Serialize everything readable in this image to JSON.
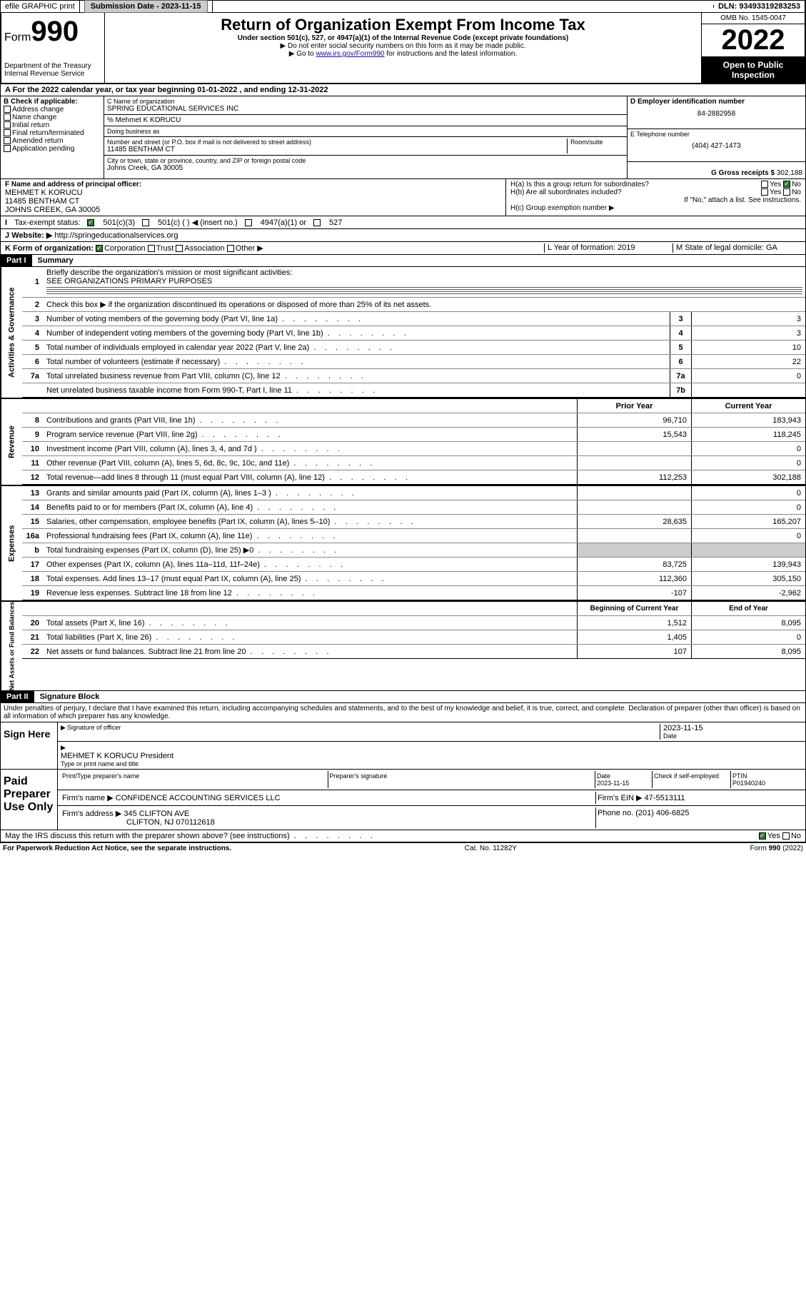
{
  "topbar": {
    "efile": "efile GRAPHIC print",
    "sub_label": "Submission Date - 2023-11-15",
    "dln": "DLN: 93493319283253"
  },
  "header": {
    "form_word": "Form",
    "form_num": "990",
    "dept": "Department of the Treasury",
    "irs": "Internal Revenue Service",
    "title": "Return of Organization Exempt From Income Tax",
    "sub1": "Under section 501(c), 527, or 4947(a)(1) of the Internal Revenue Code (except private foundations)",
    "sub2": "▶ Do not enter social security numbers on this form as it may be made public.",
    "sub3_pre": "▶ Go to ",
    "sub3_link": "www.irs.gov/Form990",
    "sub3_post": " for instructions and the latest information.",
    "omb": "OMB No. 1545-0047",
    "year": "2022",
    "open": "Open to Public Inspection"
  },
  "rowA": "A For the 2022 calendar year, or tax year beginning 01-01-2022    , and ending 12-31-2022",
  "boxB": {
    "title": "B Check if applicable:",
    "opts": [
      "Address change",
      "Name change",
      "Initial return",
      "Final return/terminated",
      "Amended return",
      "Application pending"
    ]
  },
  "boxC": {
    "label": "C Name of organization",
    "name": "SPRING EDUCATIONAL SERVICES INC",
    "care": "% Mehmet K KORUCU",
    "dba_label": "Doing business as",
    "addr_label": "Number and street (or P.O. box if mail is not delivered to street address)",
    "room_label": "Room/suite",
    "addr": "11485 BENTHAM CT",
    "city_label": "City or town, state or province, country, and ZIP or foreign postal code",
    "city": "Johns Creek, GA  30005"
  },
  "boxD": {
    "label": "D Employer identification number",
    "val": "84-2882958"
  },
  "boxE": {
    "label": "E Telephone number",
    "val": "(404) 427-1473"
  },
  "boxG": {
    "label": "G Gross receipts $ ",
    "val": "302,188"
  },
  "boxF": {
    "label": "F Name and address of principal officer:",
    "l1": "MEHMET K KORUCU",
    "l2": "11485 BENTHAM CT",
    "l3": "JOHNS CREEK, GA  30005"
  },
  "boxH": {
    "ha": "H(a)  Is this a group return for subordinates?",
    "hb": "H(b)  Are all subordinates included?",
    "hb2": "If \"No,\" attach a list. See instructions.",
    "hc": "H(c)  Group exemption number ▶",
    "yes": "Yes",
    "no": "No"
  },
  "rowI": {
    "label": "Tax-exempt status:",
    "o1": "501(c)(3)",
    "o2": "501(c) (  ) ◀ (insert no.)",
    "o3": "4947(a)(1) or",
    "o4": "527"
  },
  "rowJ": {
    "label": "Website: ▶",
    "val": "http://springeducationalservices.org"
  },
  "rowK": {
    "label": "K Form of organization:",
    "o1": "Corporation",
    "o2": "Trust",
    "o3": "Association",
    "o4": "Other ▶"
  },
  "rowL": {
    "label": "L Year of formation: 2019"
  },
  "rowM": {
    "label": "M State of legal domicile: GA"
  },
  "part1": {
    "hdr": "Part I",
    "title": "Summary"
  },
  "gov": {
    "label": "Activities & Governance",
    "l1": "Briefly describe the organization's mission or most significant activities:",
    "l1v": "SEE ORGANIZATIONS PRIMARY PURPOSES",
    "l2": "Check this box ▶    if the organization discontinued its operations or disposed of more than 25% of its net assets.",
    "rows": [
      {
        "n": "3",
        "t": "Number of voting members of the governing body (Part VI, line 1a)",
        "b": "3",
        "v": "3"
      },
      {
        "n": "4",
        "t": "Number of independent voting members of the governing body (Part VI, line 1b)",
        "b": "4",
        "v": "3"
      },
      {
        "n": "5",
        "t": "Total number of individuals employed in calendar year 2022 (Part V, line 2a)",
        "b": "5",
        "v": "10"
      },
      {
        "n": "6",
        "t": "Total number of volunteers (estimate if necessary)",
        "b": "6",
        "v": "22"
      },
      {
        "n": "7a",
        "t": "Total unrelated business revenue from Part VIII, column (C), line 12",
        "b": "7a",
        "v": "0"
      },
      {
        "n": "",
        "t": "Net unrelated business taxable income from Form 990-T, Part I, line 11",
        "b": "7b",
        "v": ""
      }
    ]
  },
  "rev": {
    "label": "Revenue",
    "hdr_prior": "Prior Year",
    "hdr_curr": "Current Year",
    "rows": [
      {
        "n": "8",
        "t": "Contributions and grants (Part VIII, line 1h)",
        "p": "96,710",
        "c": "183,943"
      },
      {
        "n": "9",
        "t": "Program service revenue (Part VIII, line 2g)",
        "p": "15,543",
        "c": "118,245"
      },
      {
        "n": "10",
        "t": "Investment income (Part VIII, column (A), lines 3, 4, and 7d )",
        "p": "",
        "c": "0"
      },
      {
        "n": "11",
        "t": "Other revenue (Part VIII, column (A), lines 5, 6d, 8c, 9c, 10c, and 11e)",
        "p": "",
        "c": "0"
      },
      {
        "n": "12",
        "t": "Total revenue—add lines 8 through 11 (must equal Part VIII, column (A), line 12)",
        "p": "112,253",
        "c": "302,188"
      }
    ]
  },
  "exp": {
    "label": "Expenses",
    "rows": [
      {
        "n": "13",
        "t": "Grants and similar amounts paid (Part IX, column (A), lines 1–3 )",
        "p": "",
        "c": "0"
      },
      {
        "n": "14",
        "t": "Benefits paid to or for members (Part IX, column (A), line 4)",
        "p": "",
        "c": "0"
      },
      {
        "n": "15",
        "t": "Salaries, other compensation, employee benefits (Part IX, column (A), lines 5–10)",
        "p": "28,635",
        "c": "165,207"
      },
      {
        "n": "16a",
        "t": "Professional fundraising fees (Part IX, column (A), line 11e)",
        "p": "",
        "c": "0"
      },
      {
        "n": "b",
        "t": "Total fundraising expenses (Part IX, column (D), line 25) ▶0",
        "p": "—",
        "c": "—"
      },
      {
        "n": "17",
        "t": "Other expenses (Part IX, column (A), lines 11a–11d, 11f–24e)",
        "p": "83,725",
        "c": "139,943"
      },
      {
        "n": "18",
        "t": "Total expenses. Add lines 13–17 (must equal Part IX, column (A), line 25)",
        "p": "112,360",
        "c": "305,150"
      },
      {
        "n": "19",
        "t": "Revenue less expenses. Subtract line 18 from line 12",
        "p": "-107",
        "c": "-2,962"
      }
    ]
  },
  "net": {
    "label": "Net Assets or Fund Balances",
    "hdr_beg": "Beginning of Current Year",
    "hdr_end": "End of Year",
    "rows": [
      {
        "n": "20",
        "t": "Total assets (Part X, line 16)",
        "p": "1,512",
        "c": "8,095"
      },
      {
        "n": "21",
        "t": "Total liabilities (Part X, line 26)",
        "p": "1,405",
        "c": "0"
      },
      {
        "n": "22",
        "t": "Net assets or fund balances. Subtract line 21 from line 20",
        "p": "107",
        "c": "8,095"
      }
    ]
  },
  "part2": {
    "hdr": "Part II",
    "title": "Signature Block"
  },
  "penalty": "Under penalties of perjury, I declare that I have examined this return, including accompanying schedules and statements, and to the best of my knowledge and belief, it is true, correct, and complete. Declaration of preparer (other than officer) is based on all information of which preparer has any knowledge.",
  "sign": {
    "here": "Sign Here",
    "sig_label": "Signature of officer",
    "date": "2023-11-15",
    "date_label": "Date",
    "name": "MEHMET K KORUCU  President",
    "name_label": "Type or print name and title"
  },
  "paid": {
    "title": "Paid Preparer Use Only",
    "h_name": "Print/Type preparer's name",
    "h_sig": "Preparer's signature",
    "h_date": "Date",
    "date": "2023-11-15",
    "h_check": "Check        if self-employed",
    "h_ptin": "PTIN",
    "ptin": "P01940240",
    "firm_name_l": "Firm's name     ▶",
    "firm_name": "CONFIDENCE ACCOUNTING SERVICES LLC",
    "firm_ein_l": "Firm's EIN ▶",
    "firm_ein": "47-5513111",
    "firm_addr_l": "Firm's address ▶",
    "firm_addr1": "345 CLIFTON AVE",
    "firm_addr2": "CLIFTON, NJ  070112618",
    "phone_l": "Phone no.",
    "phone": "(201) 406-6825"
  },
  "discuss": {
    "text": "May the IRS discuss this return with the preparer shown above? (see instructions)",
    "yes": "Yes",
    "no": "No"
  },
  "footer": {
    "l": "For Paperwork Reduction Act Notice, see the separate instructions.",
    "m": "Cat. No. 11282Y",
    "r": "Form 990 (2022)"
  }
}
